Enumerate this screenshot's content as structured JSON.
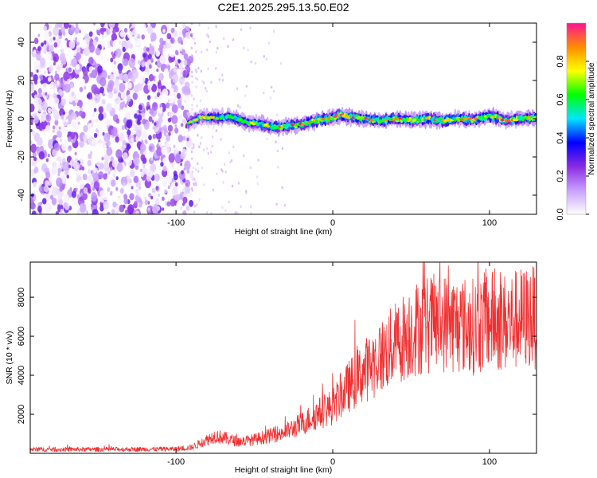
{
  "title": "C2E1.2025.295.13.50.E02",
  "chart_data": [
    {
      "type": "heatmap",
      "xlabel": "Height of straight line (km)",
      "ylabel": "Frequency (Hz)",
      "xlim": [
        -193,
        130
      ],
      "ylim": [
        -50,
        50
      ],
      "xticks": [
        -100,
        0,
        100
      ],
      "xtick_labels": [
        "-100",
        "0",
        "100"
      ],
      "yticks": [
        -40,
        -20,
        0,
        20,
        40
      ],
      "ytick_labels": [
        "-40",
        "-20",
        "0",
        "20",
        "40"
      ],
      "noise_region_x": [
        -193,
        -90
      ],
      "track": {
        "x": [
          -92,
          -85,
          -75,
          -65,
          -55,
          -45,
          -38,
          -30,
          -20,
          -10,
          0,
          5,
          10,
          20,
          30,
          40,
          50,
          60,
          70,
          80,
          90,
          100,
          105,
          110,
          120,
          130
        ],
        "freq": [
          -2,
          0.5,
          0.5,
          1,
          -2,
          -3,
          -4.5,
          -4,
          -3,
          -1,
          0.5,
          2,
          1,
          0,
          -1,
          0,
          -1,
          0,
          -1,
          0,
          -0.5,
          1.5,
          0.5,
          -1,
          0,
          0.5
        ]
      },
      "colorbar": {
        "label": "Normalized spectral amplitude",
        "range": [
          0,
          1
        ],
        "ticks": [
          0.0,
          0.2,
          0.4,
          0.6,
          0.8
        ],
        "tick_labels": [
          "0.0",
          "0.2",
          "0.4",
          "0.6",
          "0.8"
        ],
        "colors": [
          "#ffffff",
          "#c8a0ff",
          "#8a2be2",
          "#0000ff",
          "#00e5ff",
          "#00ff00",
          "#ffff00",
          "#ff8c00",
          "#ff1493"
        ]
      }
    },
    {
      "type": "line",
      "xlabel": "Height of straight line (km)",
      "ylabel": "SNR (10 * v/v)",
      "xlim": [
        -193,
        130
      ],
      "ylim": [
        0,
        9800
      ],
      "xticks": [
        -100,
        0,
        100
      ],
      "xtick_labels": [
        "-100",
        "0",
        "100"
      ],
      "yticks": [
        2000,
        4000,
        6000,
        8000
      ],
      "ytick_labels": [
        "2000",
        "4000",
        "6000",
        "8000"
      ],
      "color": "#f03030",
      "trend": {
        "x": [
          -193,
          -150,
          -100,
          -90,
          -80,
          -75,
          -70,
          -60,
          -50,
          -40,
          -30,
          -20,
          -10,
          0,
          10,
          20,
          30,
          40,
          50,
          60,
          70,
          80,
          90,
          100,
          110,
          120,
          130
        ],
        "y": [
          200,
          200,
          220,
          300,
          700,
          900,
          800,
          600,
          700,
          900,
          1100,
          1500,
          2000,
          2400,
          3400,
          4200,
          4900,
          5600,
          6300,
          6600,
          6700,
          6600,
          6500,
          6800,
          6700,
          6900,
          7000
        ]
      }
    }
  ]
}
